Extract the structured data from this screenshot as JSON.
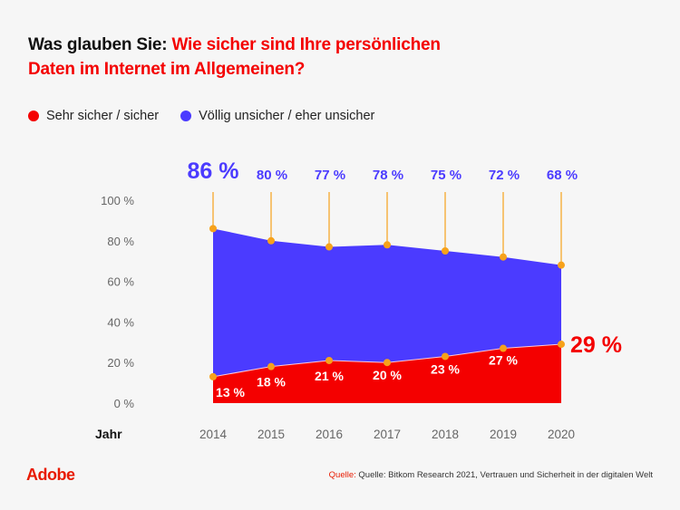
{
  "header": {
    "title_prefix": "Was glauben Sie: ",
    "title_accent_line1": "Wie sicher sind Ihre persönlichen",
    "title_accent_line2": "Daten im Internet im Allgemeinen?"
  },
  "legend": [
    {
      "label": "Sehr sicher / sicher",
      "color": "#f40000"
    },
    {
      "label": "Völlig unsicher / eher unsicher",
      "color": "#4b3bff"
    }
  ],
  "chart_data": {
    "type": "area",
    "title": "Was glauben Sie: Wie sicher sind Ihre persönlichen Daten im Internet im Allgemeinen?",
    "xlabel": "Jahr",
    "ylabel": "",
    "x": [
      "2014",
      "2015",
      "2016",
      "2017",
      "2018",
      "2019",
      "2020"
    ],
    "ylim": [
      0,
      100
    ],
    "yticks": [
      0,
      20,
      40,
      60,
      80,
      100
    ],
    "ytick_labels": [
      "0 %",
      "20 %",
      "40 %",
      "60 %",
      "80 %",
      "100 %"
    ],
    "grid": false,
    "legend_position": "top-left",
    "series": [
      {
        "name": "Völlig unsicher / eher unsicher",
        "color": "#4b3bff",
        "values": [
          86,
          80,
          77,
          78,
          75,
          72,
          68
        ],
        "labels": [
          "86 %",
          "80 %",
          "77 %",
          "78 %",
          "75 %",
          "72 %",
          "68 %"
        ]
      },
      {
        "name": "Sehr sicher / sicher",
        "color": "#f40000",
        "values": [
          13,
          18,
          21,
          20,
          23,
          27,
          29
        ],
        "labels": [
          "13 %",
          "18 %",
          "21 %",
          "20 %",
          "23 %",
          "27 %",
          "29 %"
        ]
      }
    ],
    "marker_color": "#f7a21b"
  },
  "footer": {
    "logo": "Adobe",
    "source_label": "Quelle:",
    "source_text": " Quelle: Bitkom Research 2021, Vertrauen und Sicherheit in der digitalen Welt"
  }
}
